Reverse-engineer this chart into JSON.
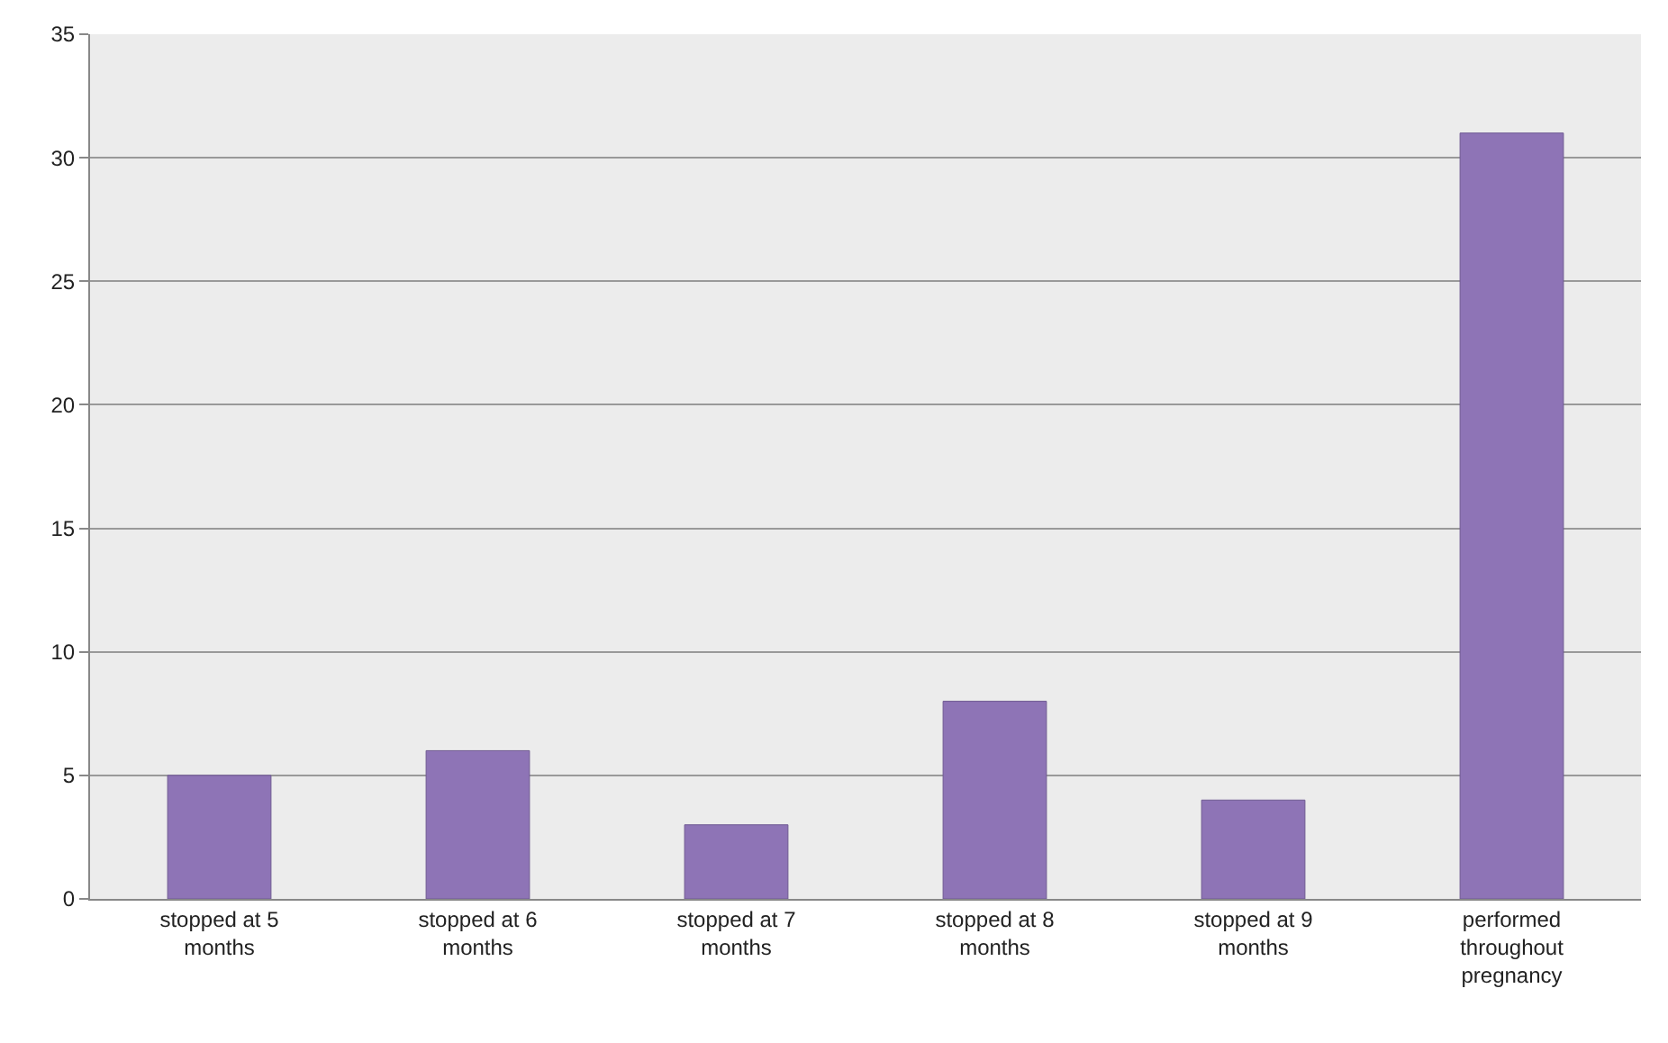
{
  "chart_data": {
    "type": "bar",
    "categories": [
      "stopped at 5 months",
      "stopped at 6 months",
      "stopped at 7 months",
      "stopped at 8 months",
      "stopped at 9 months",
      "performed throughout pregnancy"
    ],
    "values": [
      5,
      6,
      3,
      8,
      4,
      31
    ],
    "color": "#8e74b6",
    "ylim": [
      0,
      35
    ],
    "yticks": [
      0,
      5,
      10,
      15,
      20,
      25,
      30,
      35
    ],
    "grid": "y"
  }
}
